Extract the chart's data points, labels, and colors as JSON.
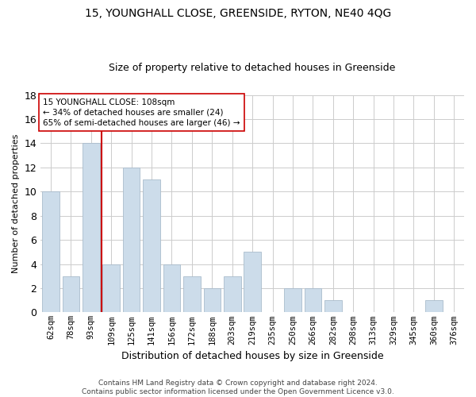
{
  "title": "15, YOUNGHALL CLOSE, GREENSIDE, RYTON, NE40 4QG",
  "subtitle": "Size of property relative to detached houses in Greenside",
  "xlabel": "Distribution of detached houses by size in Greenside",
  "ylabel": "Number of detached properties",
  "bar_labels": [
    "62sqm",
    "78sqm",
    "93sqm",
    "109sqm",
    "125sqm",
    "141sqm",
    "156sqm",
    "172sqm",
    "188sqm",
    "203sqm",
    "219sqm",
    "235sqm",
    "250sqm",
    "266sqm",
    "282sqm",
    "298sqm",
    "313sqm",
    "329sqm",
    "345sqm",
    "360sqm",
    "376sqm"
  ],
  "bar_values": [
    10,
    3,
    14,
    4,
    12,
    11,
    4,
    3,
    2,
    3,
    5,
    0,
    2,
    2,
    1,
    0,
    0,
    0,
    0,
    1,
    0
  ],
  "bar_color": "#ccdcea",
  "bar_edgecolor": "#aabccc",
  "vline_color": "#cc0000",
  "vline_x_idx": 2,
  "annotation_text_line1": "15 YOUNGHALL CLOSE: 108sqm",
  "annotation_text_line2": "← 34% of detached houses are smaller (24)",
  "annotation_text_line3": "65% of semi-detached houses are larger (46) →",
  "ylim": [
    0,
    18
  ],
  "yticks": [
    0,
    2,
    4,
    6,
    8,
    10,
    12,
    14,
    16,
    18
  ],
  "footnote": "Contains HM Land Registry data © Crown copyright and database right 2024.\nContains public sector information licensed under the Open Government Licence v3.0.",
  "background_color": "#ffffff",
  "grid_color": "#cccccc",
  "title_fontsize": 10,
  "subtitle_fontsize": 9,
  "ylabel_fontsize": 8,
  "xlabel_fontsize": 9,
  "tick_fontsize": 7.5,
  "annot_fontsize": 7.5,
  "footnote_fontsize": 6.5
}
